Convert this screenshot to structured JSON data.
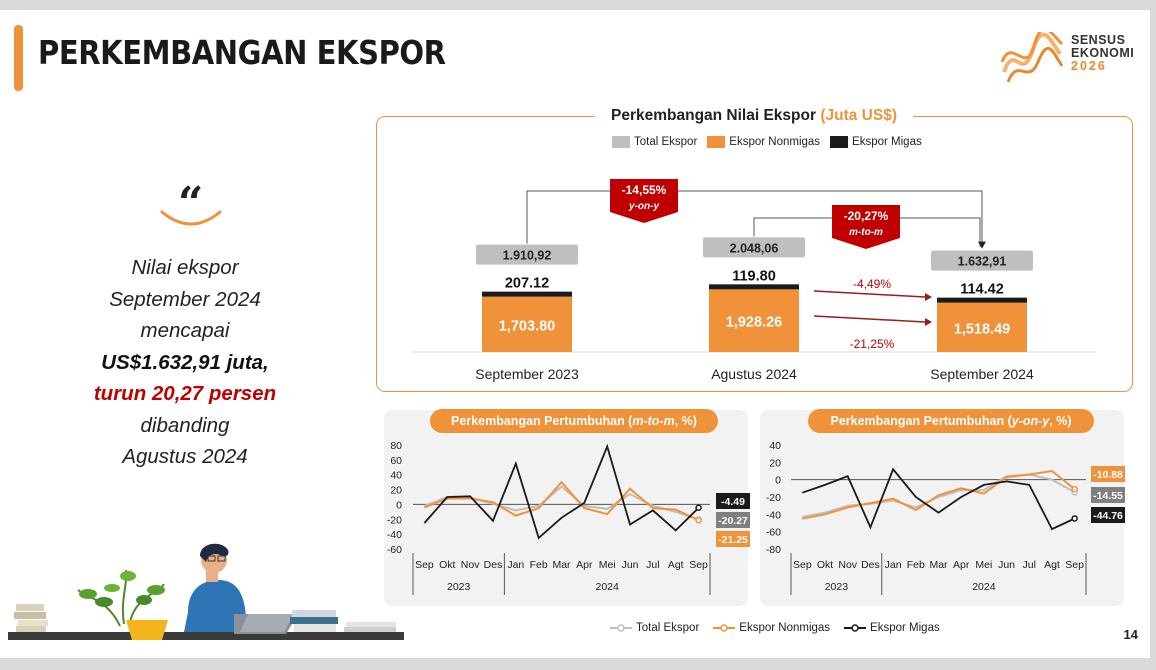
{
  "title": "PERKEMBANGAN EKSPOR",
  "logo": {
    "line1": "SENSUS",
    "line2": "EKONOMI",
    "year": "2026"
  },
  "summary": {
    "quote_symbol": "“",
    "line1": "Nilai ekspor",
    "line2": "September 2024",
    "line3": "mencapai",
    "line4": "US$1.632,91 juta,",
    "line5": "turun 20,27 persen",
    "line6": "dibanding",
    "line7": "Agustus 2024"
  },
  "page_number": "14",
  "colors": {
    "accent": "#f0923a",
    "total": "#bfbfbf",
    "migas": "#1a1a1a",
    "red": "#c00000"
  },
  "chart_data": [
    {
      "type": "bar",
      "title": "Perkembangan Nilai Ekspor",
      "title_unit": "(Juta US$)",
      "legend": [
        "Total Ekspor",
        "Ekspor Nonmigas",
        "Ekspor Migas"
      ],
      "categories": [
        "September 2023",
        "Agustus 2024",
        "September 2024"
      ],
      "series": [
        {
          "name": "Total Ekspor",
          "values": [
            1910.92,
            2048.06,
            1632.91
          ],
          "labels": [
            "1.910,92",
            "2.048,06",
            "1.632,91"
          ]
        },
        {
          "name": "Ekspor Nonmigas",
          "values": [
            1703.8,
            1928.26,
            1518.49
          ],
          "labels": [
            "1,703.80",
            "1,928.26",
            "1,518.49"
          ]
        },
        {
          "name": "Ekspor Migas",
          "values": [
            207.12,
            119.8,
            114.42
          ],
          "labels": [
            "207.12",
            "119.80",
            "114.42"
          ]
        }
      ],
      "annotations": {
        "yoy": {
          "value": "-14,55%",
          "label": "y-on-y"
        },
        "mtm": {
          "value": "-20,27%",
          "label": "m-to-m"
        },
        "migas_change": "-4,49%",
        "nonmigas_change": "-21,25%"
      }
    },
    {
      "type": "line",
      "title": "Perkembangan Pertumbuhan (",
      "title_em": "m-to-m",
      "title_end": ", %)",
      "x": [
        "Sep",
        "Okt",
        "Nov",
        "Des",
        "Jan",
        "Feb",
        "Mar",
        "Apr",
        "Mei",
        "Jun",
        "Jul",
        "Agt",
        "Sep"
      ],
      "years": [
        "2023",
        "2024"
      ],
      "yticks": [
        80,
        60,
        40,
        20,
        0,
        -20,
        -40,
        -60
      ],
      "ylim": [
        -60,
        80
      ],
      "series": [
        {
          "name": "Total Ekspor",
          "values": [
            -2,
            10,
            9,
            1,
            -8,
            -2,
            24,
            -2,
            -6,
            14,
            -2,
            -10,
            -20.27
          ]
        },
        {
          "name": "Ekspor Nonmigas",
          "values": [
            -4,
            8,
            8,
            3,
            -15,
            -5,
            30,
            -5,
            -13,
            21,
            -5,
            -7,
            -21.25
          ]
        },
        {
          "name": "Ekspor Migas",
          "values": [
            -25,
            10,
            11,
            -22,
            55,
            -45,
            -18,
            2,
            78,
            -27,
            -8,
            -35,
            -4.49
          ]
        }
      ],
      "end_labels": [
        "-4.49",
        "-20.27",
        "-21.25"
      ]
    },
    {
      "type": "line",
      "title": "Perkembangan Pertumbuhan (",
      "title_em": "y-on-y",
      "title_end": ", %)",
      "x": [
        "Sep",
        "Okt",
        "Nov",
        "Des",
        "Jan",
        "Feb",
        "Mar",
        "Apr",
        "Mei",
        "Jun",
        "Jul",
        "Agt",
        "Sep"
      ],
      "years": [
        "2023",
        "2024"
      ],
      "yticks": [
        40,
        20,
        0,
        -20,
        -40,
        -60,
        -80
      ],
      "ylim": [
        -80,
        40
      ],
      "series": [
        {
          "name": "Total Ekspor",
          "values": [
            -43,
            -38,
            -30,
            -28,
            -24,
            -32,
            -20,
            -12,
            -12,
            4,
            6,
            0,
            -14.55
          ]
        },
        {
          "name": "Ekspor Nonmigas",
          "values": [
            -45,
            -40,
            -32,
            -27,
            -22,
            -35,
            -18,
            -10,
            -16,
            3,
            6,
            10,
            -10.88
          ]
        },
        {
          "name": "Ekspor Migas",
          "values": [
            -15,
            -6,
            4,
            -55,
            12,
            -20,
            -38,
            -20,
            -6,
            -2,
            -6,
            -57,
            -44.76
          ]
        }
      ],
      "end_labels": [
        "-10.88",
        "-14.55",
        "-44.76"
      ]
    }
  ],
  "line_legend": [
    "Total Ekspor",
    "Ekspor Nonmigas",
    "Ekspor Migas"
  ]
}
